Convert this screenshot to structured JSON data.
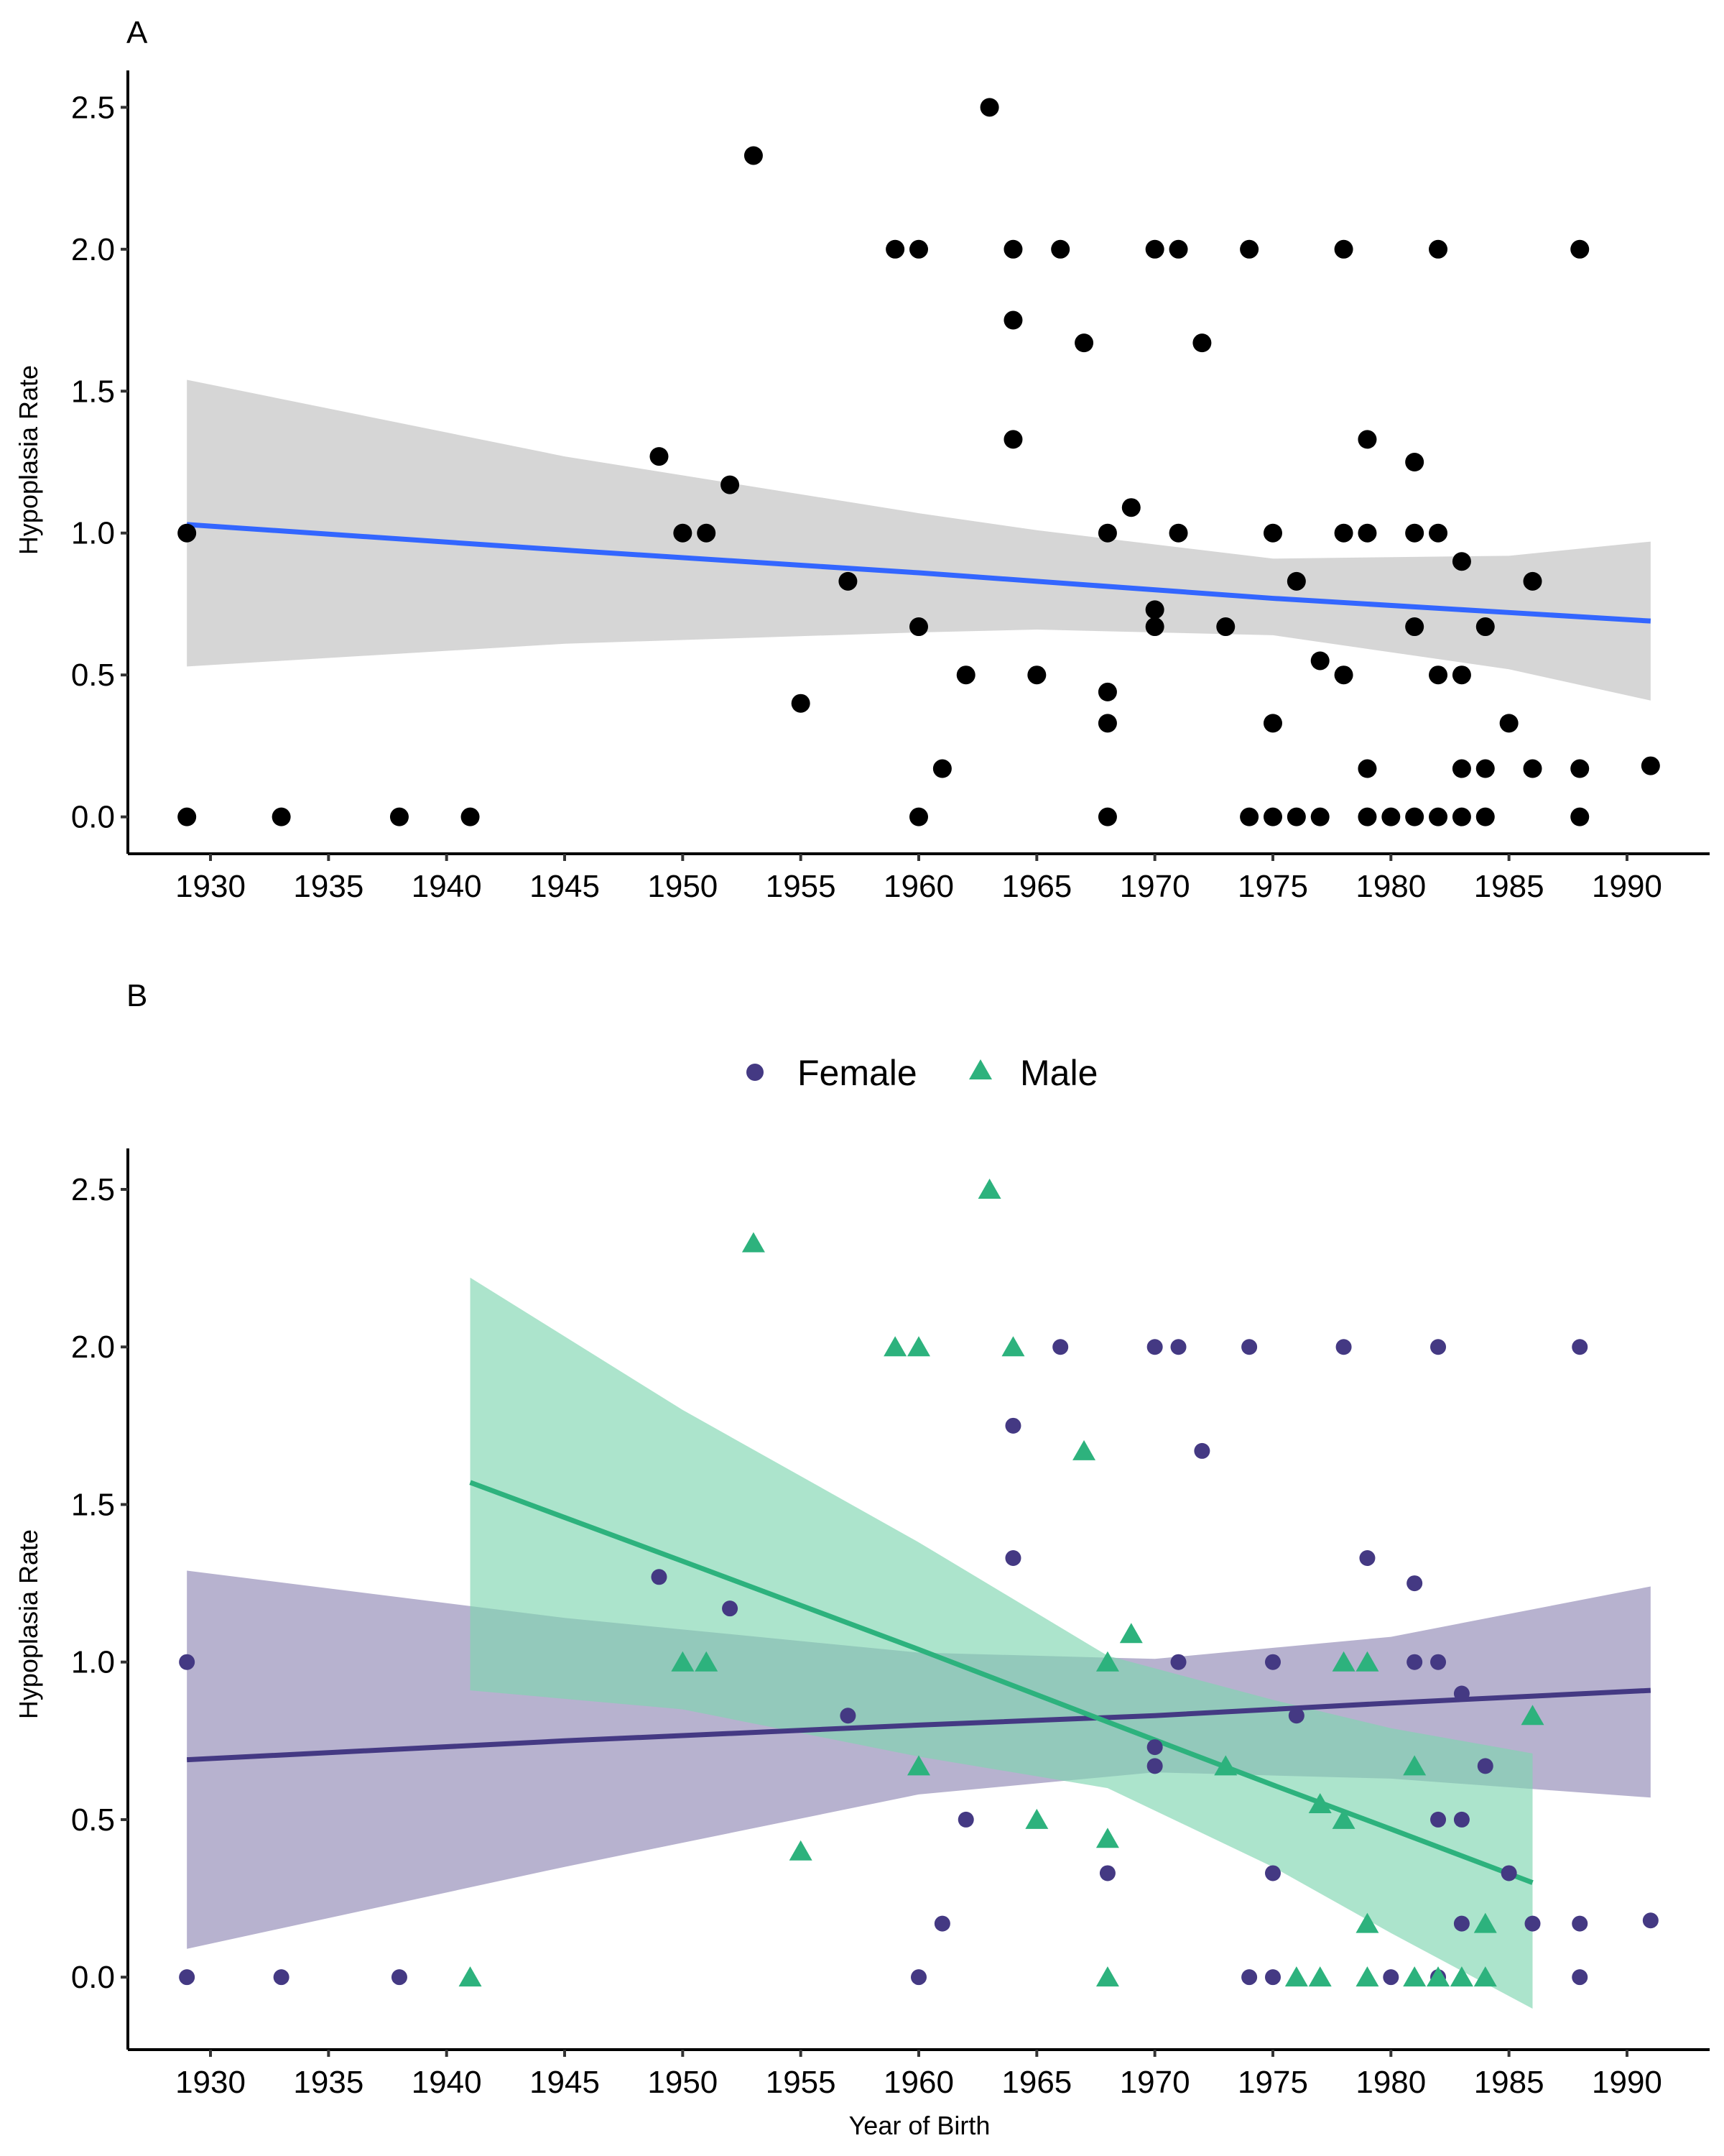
{
  "figure": {
    "x_axis_title": "Year of Birth",
    "y_axis_title": "Hypoplasia Rate"
  },
  "chart_data": [
    {
      "panel": "A",
      "type": "scatter",
      "title": "",
      "xlabel": "",
      "ylabel": "Hypoplasia Rate",
      "xlim": [
        1926.5,
        1993.5
      ],
      "ylim": [
        -0.13,
        2.63
      ],
      "xticks": [
        1930,
        1935,
        1940,
        1945,
        1950,
        1955,
        1960,
        1965,
        1970,
        1975,
        1980,
        1985,
        1990
      ],
      "yticks": [
        0.0,
        0.5,
        1.0,
        1.5,
        2.0,
        2.5
      ],
      "ytick_labels": [
        "0.0",
        "0.5",
        "1.0",
        "1.5",
        "2.0",
        "2.5"
      ],
      "grid": false,
      "legend": "none",
      "point_color": "#000000",
      "points": [
        [
          1929,
          1.0
        ],
        [
          1929,
          0.0
        ],
        [
          1933,
          0.0
        ],
        [
          1938,
          0.0
        ],
        [
          1941,
          0.0
        ],
        [
          1949,
          1.27
        ],
        [
          1950,
          1.0
        ],
        [
          1951,
          1.0
        ],
        [
          1952,
          1.17
        ],
        [
          1953,
          2.33
        ],
        [
          1955,
          0.4
        ],
        [
          1957,
          0.83
        ],
        [
          1959,
          2.0
        ],
        [
          1960,
          2.0
        ],
        [
          1960,
          0.67
        ],
        [
          1960,
          0.0
        ],
        [
          1961,
          0.17
        ],
        [
          1962,
          0.5
        ],
        [
          1963,
          2.5
        ],
        [
          1964,
          2.0
        ],
        [
          1964,
          1.75
        ],
        [
          1964,
          1.33
        ],
        [
          1965,
          0.5
        ],
        [
          1966,
          2.0
        ],
        [
          1967,
          1.67
        ],
        [
          1968,
          1.0
        ],
        [
          1968,
          0.44
        ],
        [
          1968,
          0.33
        ],
        [
          1968,
          0.0
        ],
        [
          1969,
          1.09
        ],
        [
          1970,
          2.0
        ],
        [
          1970,
          0.73
        ],
        [
          1970,
          0.67
        ],
        [
          1971,
          2.0
        ],
        [
          1971,
          1.0
        ],
        [
          1972,
          1.67
        ],
        [
          1973,
          0.67
        ],
        [
          1974,
          2.0
        ],
        [
          1974,
          0.0
        ],
        [
          1975,
          1.0
        ],
        [
          1975,
          0.33
        ],
        [
          1975,
          0.0
        ],
        [
          1976,
          0.83
        ],
        [
          1976,
          0.0
        ],
        [
          1977,
          0.55
        ],
        [
          1977,
          0.0
        ],
        [
          1978,
          2.0
        ],
        [
          1978,
          1.0
        ],
        [
          1978,
          0.5
        ],
        [
          1979,
          1.33
        ],
        [
          1979,
          1.0
        ],
        [
          1979,
          0.17
        ],
        [
          1979,
          0.0
        ],
        [
          1980,
          0.0
        ],
        [
          1981,
          1.25
        ],
        [
          1981,
          1.0
        ],
        [
          1981,
          0.67
        ],
        [
          1981,
          0.0
        ],
        [
          1982,
          2.0
        ],
        [
          1982,
          1.0
        ],
        [
          1982,
          0.5
        ],
        [
          1982,
          0.0
        ],
        [
          1983,
          0.9
        ],
        [
          1983,
          0.5
        ],
        [
          1983,
          0.17
        ],
        [
          1983,
          0.0
        ],
        [
          1984,
          0.67
        ],
        [
          1984,
          0.17
        ],
        [
          1984,
          0.0
        ],
        [
          1985,
          0.33
        ],
        [
          1986,
          0.83
        ],
        [
          1986,
          0.17
        ],
        [
          1988,
          2.0
        ],
        [
          1988,
          0.17
        ],
        [
          1988,
          0.0
        ],
        [
          1991,
          0.18
        ]
      ],
      "fit": {
        "color": "#3366FF",
        "band_color": "#d4d4d4",
        "x": [
          1929,
          1945,
          1960,
          1965,
          1975,
          1985,
          1991
        ],
        "y": [
          1.03,
          0.94,
          0.86,
          0.83,
          0.77,
          0.72,
          0.69
        ],
        "lower": [
          0.53,
          0.61,
          0.65,
          0.66,
          0.64,
          0.52,
          0.41
        ],
        "upper": [
          1.54,
          1.27,
          1.07,
          1.01,
          0.91,
          0.92,
          0.97
        ]
      }
    },
    {
      "panel": "B",
      "type": "scatter",
      "title": "",
      "xlabel": "Year of Birth",
      "ylabel": "Hypoplasia Rate",
      "xlim": [
        1926.5,
        1993.5
      ],
      "ylim": [
        -0.23,
        2.63
      ],
      "xticks": [
        1930,
        1935,
        1940,
        1945,
        1950,
        1955,
        1960,
        1965,
        1970,
        1975,
        1980,
        1985,
        1990
      ],
      "yticks": [
        0.0,
        0.5,
        1.0,
        1.5,
        2.0,
        2.5
      ],
      "ytick_labels": [
        "0.0",
        "0.5",
        "1.0",
        "1.5",
        "2.0",
        "2.5"
      ],
      "grid": false,
      "legend": "top-center",
      "series": [
        {
          "name": "Female",
          "marker": "circle",
          "color": "#443983",
          "band_color": "#b3aecc",
          "points": [
            [
              1929,
              1.0
            ],
            [
              1929,
              0.0
            ],
            [
              1933,
              0.0
            ],
            [
              1938,
              0.0
            ],
            [
              1949,
              1.27
            ],
            [
              1952,
              1.17
            ],
            [
              1957,
              0.83
            ],
            [
              1960,
              0.0
            ],
            [
              1961,
              0.17
            ],
            [
              1962,
              0.5
            ],
            [
              1964,
              1.75
            ],
            [
              1964,
              1.33
            ],
            [
              1966,
              2.0
            ],
            [
              1968,
              0.33
            ],
            [
              1970,
              2.0
            ],
            [
              1970,
              0.73
            ],
            [
              1970,
              0.67
            ],
            [
              1971,
              2.0
            ],
            [
              1971,
              1.0
            ],
            [
              1972,
              1.67
            ],
            [
              1974,
              2.0
            ],
            [
              1974,
              0.0
            ],
            [
              1975,
              1.0
            ],
            [
              1975,
              0.33
            ],
            [
              1975,
              0.0
            ],
            [
              1976,
              0.83
            ],
            [
              1978,
              2.0
            ],
            [
              1979,
              1.33
            ],
            [
              1980,
              0.0
            ],
            [
              1981,
              1.25
            ],
            [
              1981,
              1.0
            ],
            [
              1982,
              2.0
            ],
            [
              1982,
              1.0
            ],
            [
              1982,
              0.5
            ],
            [
              1982,
              0.0
            ],
            [
              1983,
              0.9
            ],
            [
              1983,
              0.5
            ],
            [
              1983,
              0.17
            ],
            [
              1984,
              0.67
            ],
            [
              1985,
              0.33
            ],
            [
              1986,
              0.17
            ],
            [
              1988,
              2.0
            ],
            [
              1988,
              0.17
            ],
            [
              1988,
              0.0
            ],
            [
              1991,
              0.18
            ]
          ],
          "fit": {
            "x": [
              1929,
              1945,
              1960,
              1970,
              1980,
              1991
            ],
            "y": [
              0.69,
              0.75,
              0.8,
              0.83,
              0.87,
              0.91
            ],
            "lower": [
              0.09,
              0.35,
              0.58,
              0.65,
              0.63,
              0.57
            ],
            "upper": [
              1.29,
              1.14,
              1.03,
              1.01,
              1.08,
              1.24
            ]
          }
        },
        {
          "name": "Male",
          "marker": "triangle",
          "color": "#2db27d",
          "band_color": "#7fd6b0",
          "points": [
            [
              1941,
              0.0
            ],
            [
              1950,
              1.0
            ],
            [
              1951,
              1.0
            ],
            [
              1953,
              2.33
            ],
            [
              1955,
              0.4
            ],
            [
              1959,
              2.0
            ],
            [
              1960,
              2.0
            ],
            [
              1960,
              0.67
            ],
            [
              1963,
              2.5
            ],
            [
              1964,
              2.0
            ],
            [
              1965,
              0.5
            ],
            [
              1967,
              1.67
            ],
            [
              1968,
              1.0
            ],
            [
              1968,
              0.44
            ],
            [
              1968,
              0.0
            ],
            [
              1969,
              1.09
            ],
            [
              1973,
              0.67
            ],
            [
              1976,
              0.0
            ],
            [
              1977,
              0.55
            ],
            [
              1977,
              0.0
            ],
            [
              1978,
              1.0
            ],
            [
              1978,
              0.5
            ],
            [
              1979,
              1.0
            ],
            [
              1979,
              0.17
            ],
            [
              1979,
              0.0
            ],
            [
              1981,
              0.67
            ],
            [
              1981,
              0.0
            ],
            [
              1982,
              0.0
            ],
            [
              1983,
              0.0
            ],
            [
              1984,
              0.17
            ],
            [
              1984,
              0.0
            ],
            [
              1986,
              0.83
            ]
          ],
          "fit": {
            "x": [
              1941,
              1950,
              1960,
              1968,
              1975,
              1980,
              1986
            ],
            "y": [
              1.57,
              1.32,
              1.04,
              0.81,
              0.61,
              0.47,
              0.3
            ],
            "lower": [
              0.91,
              0.85,
              0.7,
              0.6,
              0.35,
              0.14,
              -0.1
            ],
            "upper": [
              2.22,
              1.8,
              1.38,
              1.02,
              0.88,
              0.79,
              0.71
            ]
          }
        }
      ]
    }
  ],
  "panels": {
    "a": {
      "label": "A"
    },
    "b": {
      "label": "B"
    }
  },
  "legend": {
    "items": [
      {
        "label": "Female"
      },
      {
        "label": "Male"
      }
    ]
  }
}
